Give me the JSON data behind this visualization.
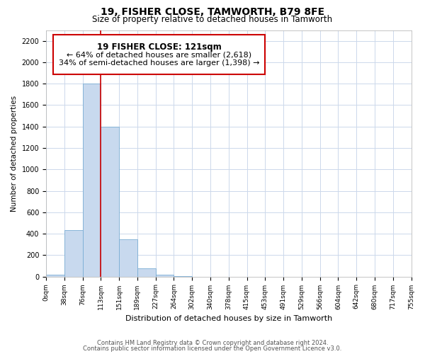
{
  "title": "19, FISHER CLOSE, TAMWORTH, B79 8FE",
  "subtitle": "Size of property relative to detached houses in Tamworth",
  "xlabel": "Distribution of detached houses by size in Tamworth",
  "ylabel": "Number of detached properties",
  "bin_labels": [
    "0sqm",
    "38sqm",
    "76sqm",
    "113sqm",
    "151sqm",
    "189sqm",
    "227sqm",
    "264sqm",
    "302sqm",
    "340sqm",
    "378sqm",
    "415sqm",
    "453sqm",
    "491sqm",
    "529sqm",
    "566sqm",
    "604sqm",
    "642sqm",
    "680sqm",
    "717sqm",
    "755sqm"
  ],
  "bar_heights": [
    15,
    430,
    1800,
    1400,
    350,
    75,
    20,
    5,
    0,
    0,
    0,
    0,
    0,
    0,
    0,
    0,
    0,
    0,
    0,
    0
  ],
  "bar_color": "#c8d9ee",
  "bar_edge_color": "#7aadd4",
  "property_line_x": 3,
  "property_line_color": "#cc0000",
  "ylim": [
    0,
    2300
  ],
  "yticks": [
    0,
    200,
    400,
    600,
    800,
    1000,
    1200,
    1400,
    1600,
    1800,
    2000,
    2200
  ],
  "annotation_title": "19 FISHER CLOSE: 121sqm",
  "annotation_line1": "← 64% of detached houses are smaller (2,618)",
  "annotation_line2": "34% of semi-detached houses are larger (1,398) →",
  "annotation_box_facecolor": "#ffffff",
  "annotation_box_edgecolor": "#cc0000",
  "footer_line1": "Contains HM Land Registry data © Crown copyright and database right 2024.",
  "footer_line2": "Contains public sector information licensed under the Open Government Licence v3.0.",
  "background_color": "#ffffff",
  "grid_color": "#ccd8eb"
}
